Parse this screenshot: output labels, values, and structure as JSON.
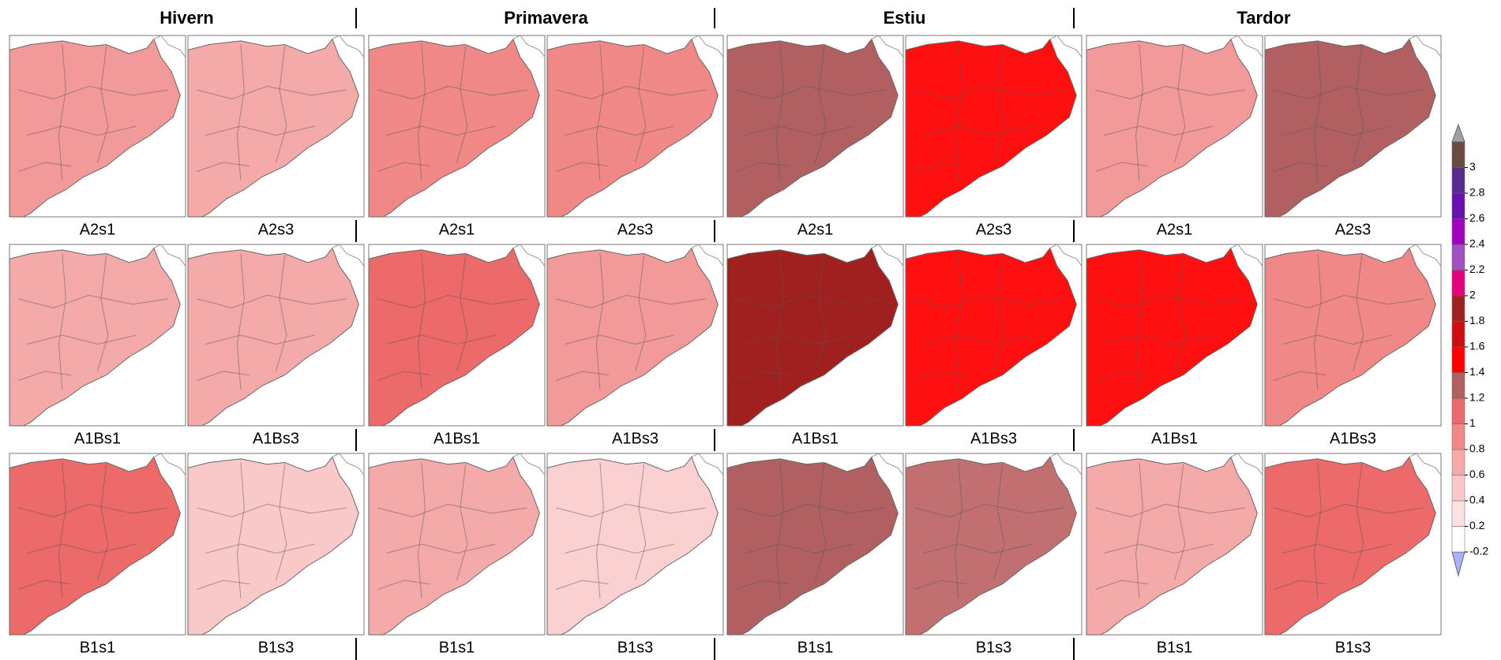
{
  "seasons": [
    {
      "title": "Hivern",
      "panels": [
        [
          {
            "label": "A2s1",
            "color": "#f29a9a"
          },
          {
            "label": "A2s3",
            "color": "#f5aaaa"
          }
        ],
        [
          {
            "label": "A1Bs1",
            "color": "#f5aaaa"
          },
          {
            "label": "A1Bs3",
            "color": "#f5aaaa"
          }
        ],
        [
          {
            "label": "B1s1",
            "color": "#ec6a6a"
          },
          {
            "label": "B1s3",
            "color": "#f9c8c8"
          }
        ]
      ]
    },
    {
      "title": "Primavera",
      "panels": [
        [
          {
            "label": "A2s1",
            "color": "#f08888"
          },
          {
            "label": "A2s3",
            "color": "#f08888"
          }
        ],
        [
          {
            "label": "A1Bs1",
            "color": "#ec6a6a"
          },
          {
            "label": "A1Bs3",
            "color": "#f29a9a"
          }
        ],
        [
          {
            "label": "B1s1",
            "color": "#f5aaaa"
          },
          {
            "label": "B1s3",
            "color": "#fbd0d0"
          }
        ]
      ]
    },
    {
      "title": "Estiu",
      "panels": [
        [
          {
            "label": "A2s1",
            "color": "#b06060"
          },
          {
            "label": "A2s3",
            "color": "#ff1010"
          }
        ],
        [
          {
            "label": "A1Bs1",
            "color": "#a02020"
          },
          {
            "label": "A1Bs3",
            "color": "#ff1010"
          }
        ],
        [
          {
            "label": "B1s1",
            "color": "#b06060"
          },
          {
            "label": "B1s3",
            "color": "#c07070"
          }
        ]
      ]
    },
    {
      "title": "Tardor",
      "panels": [
        [
          {
            "label": "A2s1",
            "color": "#f29a9a"
          },
          {
            "label": "A2s3",
            "color": "#b06060"
          }
        ],
        [
          {
            "label": "A1Bs1",
            "color": "#ff1010"
          },
          {
            "label": "A1Bs3",
            "color": "#f08888"
          }
        ],
        [
          {
            "label": "B1s1",
            "color": "#f5aaaa"
          },
          {
            "label": "B1s3",
            "color": "#ec6a6a"
          }
        ]
      ]
    }
  ],
  "colorbar": {
    "ticks": [
      -0.2,
      0.2,
      0.4,
      0.6,
      0.8,
      1,
      1.2,
      1.4,
      1.6,
      1.8,
      2,
      2.2,
      2.4,
      2.6,
      2.8,
      3
    ],
    "colors": [
      "#ffffff",
      "#fde0e0",
      "#f9c8c8",
      "#f5aaaa",
      "#f08888",
      "#ec6a6a",
      "#b06060",
      "#ff0000",
      "#d01010",
      "#a02020",
      "#e6007e",
      "#a050c0",
      "#a000c0",
      "#6a10b0",
      "#5a2a90",
      "#6b4a44"
    ],
    "under_color": "#aab0ff",
    "over_color": "#a0a0a0"
  }
}
